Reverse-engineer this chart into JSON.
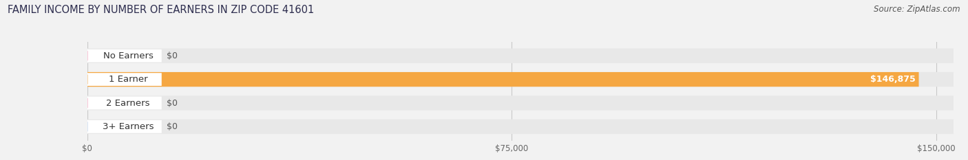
{
  "title": "FAMILY INCOME BY NUMBER OF EARNERS IN ZIP CODE 41601",
  "source": "Source: ZipAtlas.com",
  "categories": [
    "No Earners",
    "1 Earner",
    "2 Earners",
    "3+ Earners"
  ],
  "values": [
    0,
    146875,
    0,
    0
  ],
  "bar_colors": [
    "#f48fb1",
    "#f5a742",
    "#f48fb1",
    "#aec6e8"
  ],
  "bg_color": "#f2f2f2",
  "bar_bg_color": "#e8e8e8",
  "xlim_max": 153000,
  "xticks": [
    0,
    75000,
    150000
  ],
  "xticklabels": [
    "$0",
    "$75,000",
    "$150,000"
  ],
  "value_labels": [
    "$0",
    "$146,875",
    "$0",
    "$0"
  ],
  "title_fontsize": 10.5,
  "source_fontsize": 8.5,
  "cat_fontsize": 9.5,
  "value_fontsize": 9,
  "figsize": [
    14.06,
    2.33
  ],
  "dpi": 100
}
